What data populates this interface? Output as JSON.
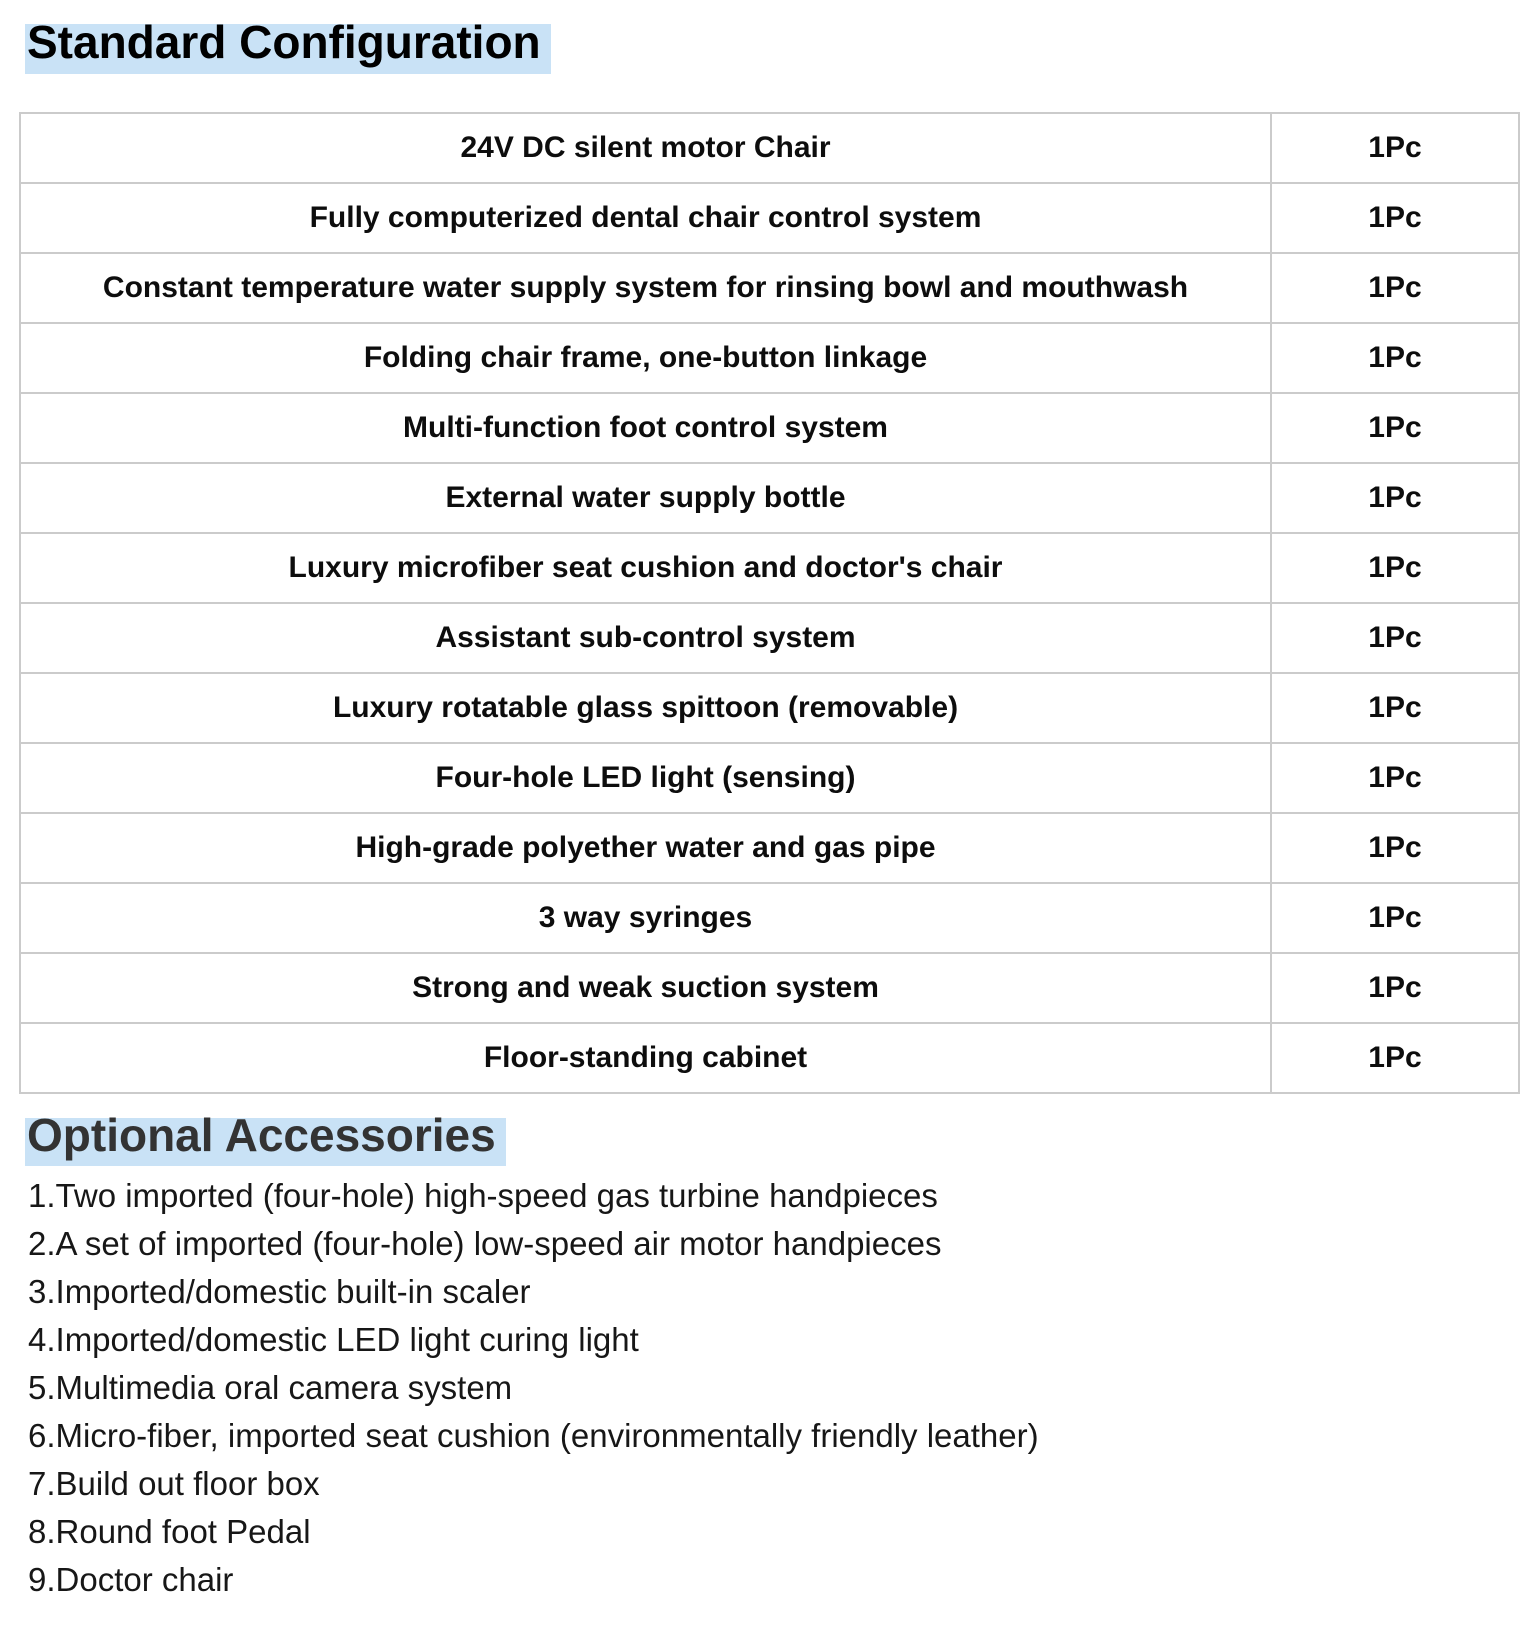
{
  "theme": {
    "highlight_color": "#c9e2f6",
    "table_border_color": "#cbcbcb"
  },
  "sections": {
    "standard_configuration": {
      "title": "Standard Configuration",
      "table": {
        "rows": [
          {
            "item": "24V DC silent motor Chair",
            "qty": "1Pc"
          },
          {
            "item": "Fully computerized dental chair control system",
            "qty": "1Pc"
          },
          {
            "item": "Constant temperature water supply system for rinsing bowl and mouthwash",
            "qty": "1Pc"
          },
          {
            "item": "Folding chair frame, one-button linkage",
            "qty": "1Pc"
          },
          {
            "item": "Multi-function foot control system",
            "qty": "1Pc"
          },
          {
            "item": "External water supply bottle",
            "qty": "1Pc"
          },
          {
            "item": "Luxury microfiber seat cushion and doctor's chair",
            "qty": "1Pc"
          },
          {
            "item": "Assistant sub-control system",
            "qty": "1Pc"
          },
          {
            "item": "Luxury rotatable glass spittoon (removable)",
            "qty": "1Pc"
          },
          {
            "item": "Four-hole LED light (sensing)",
            "qty": "1Pc"
          },
          {
            "item": "High-grade polyether water and gas pipe",
            "qty": "1Pc"
          },
          {
            "item": "3 way syringes",
            "qty": "1Pc"
          },
          {
            "item": "Strong and weak suction system",
            "qty": "1Pc"
          },
          {
            "item": "Floor-standing cabinet",
            "qty": "1Pc"
          }
        ]
      }
    },
    "optional_accessories": {
      "title": "Optional Accessories",
      "items": [
        "1.Two imported (four-hole) high-speed gas turbine handpieces",
        "2.A set of imported (four-hole) low-speed air motor handpieces",
        "3.Imported/domestic built-in scaler",
        "4.Imported/domestic LED light curing light",
        "5.Multimedia oral camera system",
        "6.Micro-fiber, imported seat cushion (environmentally friendly leather)",
        "7.Build out floor box",
        "8.Round foot Pedal",
        "9.Doctor chair"
      ]
    }
  }
}
